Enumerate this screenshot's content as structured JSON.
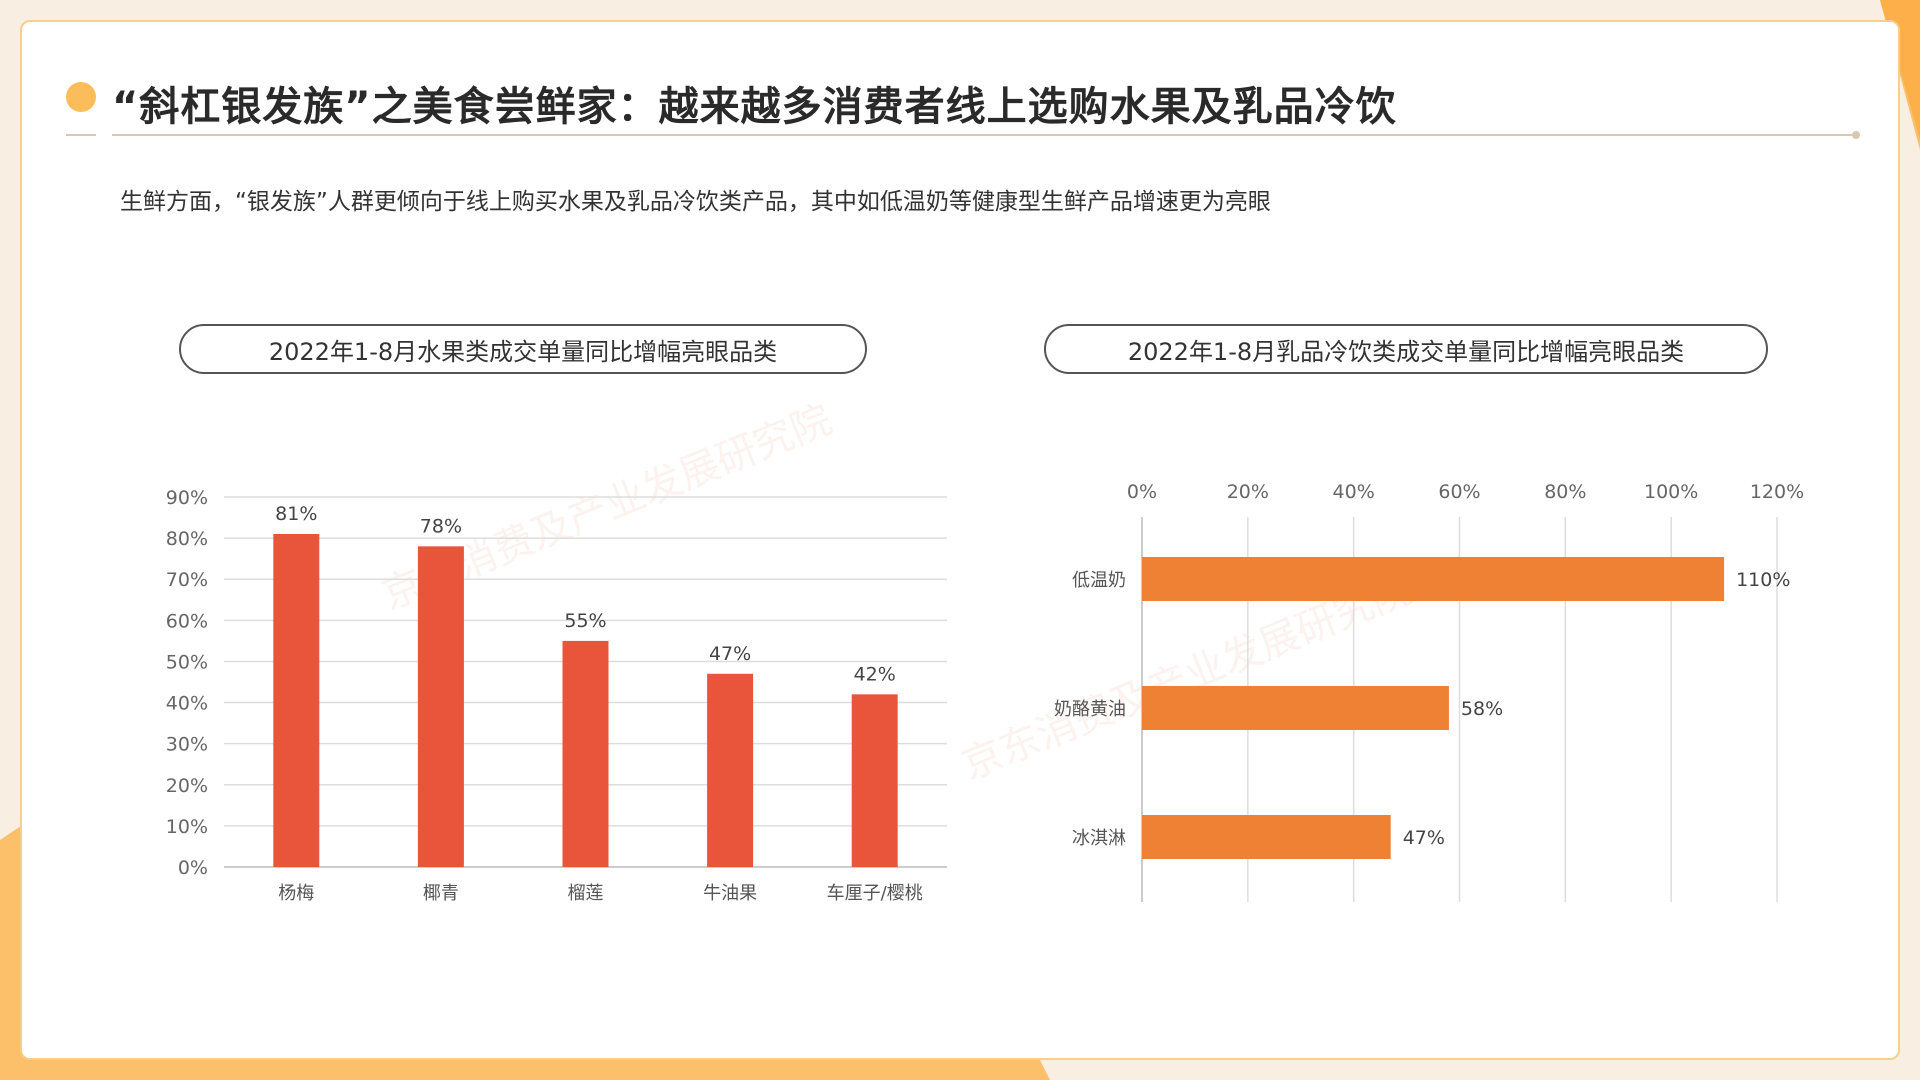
{
  "header": {
    "title": "“斜杠银发族”之美食尝鲜家：越来越多消费者线上选购水果及乳品冷饮",
    "subtitle": "生鲜方面，“银发族”人群更倾向于线上购买水果及乳品冷饮类产品，其中如低温奶等健康型生鲜产品增速更为亮眼"
  },
  "watermark": "京东消费及产业发展研究院",
  "colors": {
    "accent_orange": "#fbbd5a",
    "bar_red": "#e8553a",
    "bar_orange": "#ee8133"
  },
  "chart_data": [
    {
      "type": "bar",
      "title": "2022年1-8月水果类成交单量同比增幅亮眼品类",
      "categories": [
        "杨梅",
        "椰青",
        "榴莲",
        "牛油果",
        "车厘子/樱桃"
      ],
      "values": [
        81,
        78,
        55,
        47,
        42
      ],
      "data_labels": [
        "81%",
        "78%",
        "55%",
        "47%",
        "42%"
      ],
      "ylim": [
        0,
        90
      ],
      "yticks": [
        "0%",
        "10%",
        "20%",
        "30%",
        "40%",
        "50%",
        "60%",
        "70%",
        "80%",
        "90%"
      ],
      "grid": true,
      "color": "#e8553a"
    },
    {
      "type": "bar",
      "orientation": "horizontal",
      "title": "2022年1-8月乳品冷饮类成交单量同比增幅亮眼品类",
      "categories": [
        "低温奶",
        "奶酪黄油",
        "冰淇淋"
      ],
      "values": [
        110,
        58,
        47
      ],
      "data_labels": [
        "110%",
        "58%",
        "47%"
      ],
      "xlim": [
        0,
        120
      ],
      "xticks": [
        "0%",
        "20%",
        "40%",
        "60%",
        "80%",
        "100%",
        "120%"
      ],
      "grid": true,
      "color": "#ee8133"
    }
  ]
}
